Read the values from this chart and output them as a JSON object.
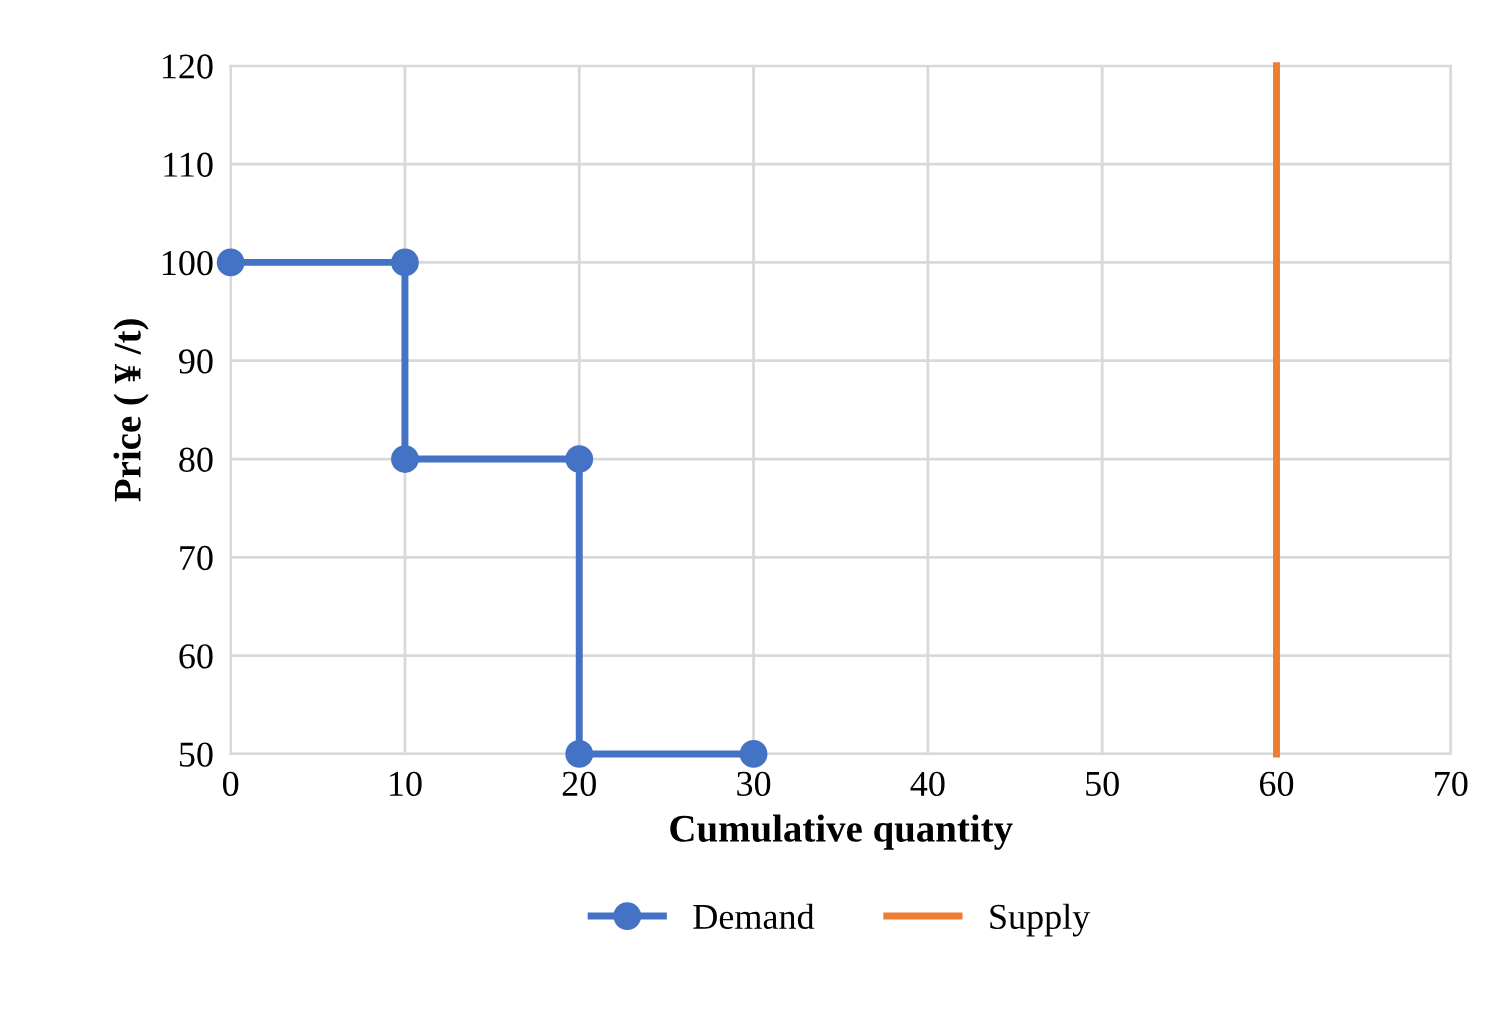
{
  "chart_data": {
    "type": "line",
    "xlabel": "Cumulative quantity",
    "ylabel": "Price ( ¥ /t)",
    "series": [
      {
        "name": "Demand",
        "color": "#4472c4",
        "marker": "circle",
        "x": [
          0,
          10,
          10,
          20,
          20,
          30
        ],
        "values": [
          100,
          100,
          80,
          80,
          50,
          50
        ]
      },
      {
        "name": "Supply",
        "color": "#ed7d31",
        "marker": "none",
        "x": [
          60,
          60
        ],
        "values": [
          50,
          120
        ]
      }
    ],
    "xlim": [
      0,
      70
    ],
    "xticks": [
      0,
      10,
      20,
      30,
      40,
      50,
      60,
      70
    ],
    "ylim": [
      50,
      120
    ],
    "yticks": [
      50,
      60,
      70,
      80,
      90,
      100,
      110,
      120
    ],
    "grid": true,
    "legend": "bottom",
    "line_style": "solid"
  }
}
